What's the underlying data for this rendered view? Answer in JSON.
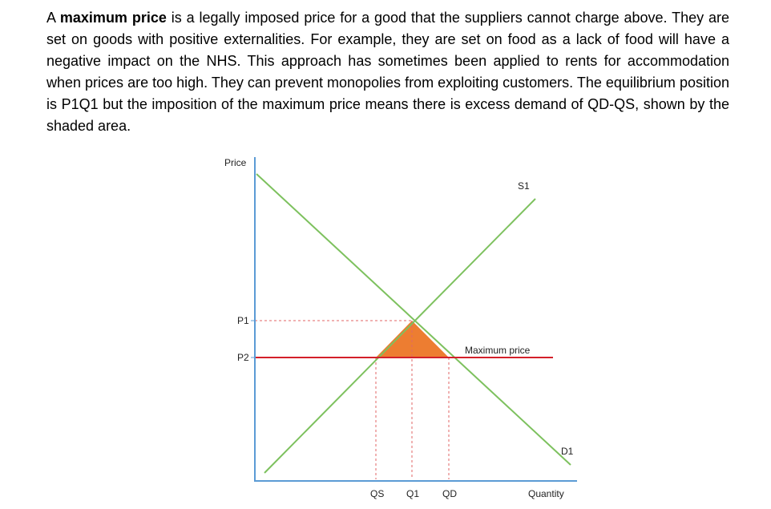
{
  "text": {
    "intro_before": "A ",
    "term": "maximum price",
    "intro_after": " is a legally imposed price for a good that the suppliers cannot charge above. They are set on goods with positive externalities. For example, they are set on food as a lack of food will have a negative impact on the NHS. This approach has sometimes been applied to rents for accommodation when prices are too high. They can prevent monopolies from exploiting customers. The equilibrium position is P1Q1 but the imposition of the maximum price means there is excess demand of QD-QS, shown by the shaded area."
  },
  "diagram": {
    "y_axis_label": "Price",
    "x_axis_label": "Quantity",
    "supply_label": "S1",
    "demand_label": "D1",
    "price_labels": {
      "equilibrium": "P1",
      "maximum": "P2"
    },
    "quantity_labels": {
      "supplied": "QS",
      "equilibrium": "Q1",
      "demanded": "QD"
    },
    "max_price_label": "Maximum price",
    "colors": {
      "axis": "#5b9bd5",
      "curves": "#7dc15e",
      "max_price_line": "#d3202a",
      "guide_lines": "#e06666",
      "shaded_area": "#ed7d31"
    }
  }
}
